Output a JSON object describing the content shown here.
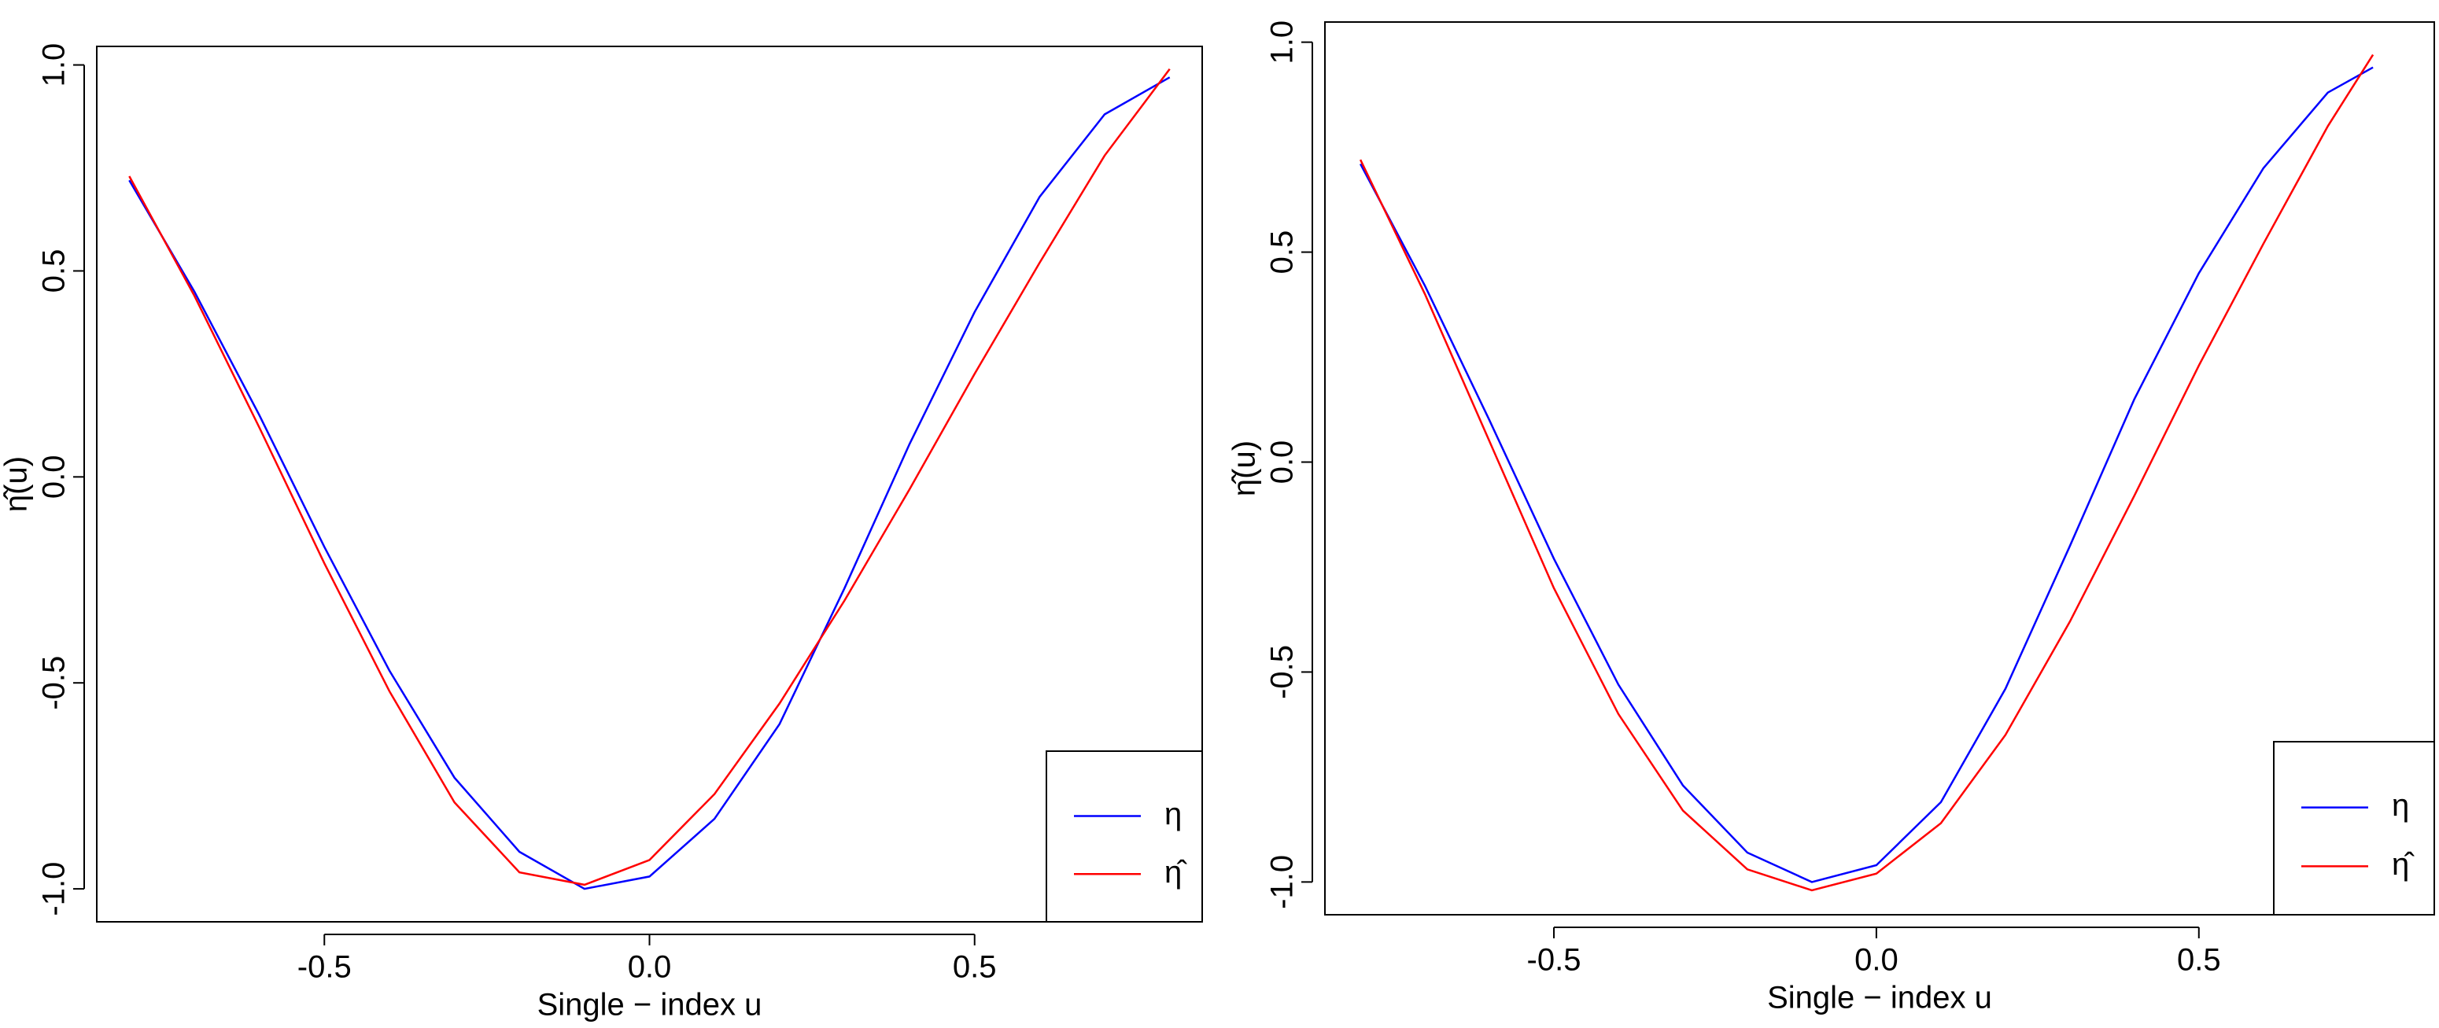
{
  "chart_data": [
    {
      "type": "line",
      "xlabel": "Single − index u",
      "ylabel": "η̂(u)",
      "x": [
        -0.8,
        -0.7,
        -0.6,
        -0.5,
        -0.4,
        -0.3,
        -0.2,
        -0.1,
        0.0,
        0.1,
        0.2,
        0.3,
        0.4,
        0.5,
        0.6,
        0.7,
        0.8
      ],
      "series": [
        {
          "name": "η",
          "color": "#0000ff",
          "values": [
            0.72,
            0.45,
            0.15,
            -0.17,
            -0.47,
            -0.73,
            -0.91,
            -1.0,
            -0.97,
            -0.83,
            -0.6,
            -0.27,
            0.08,
            0.4,
            0.68,
            0.88,
            0.97
          ]
        },
        {
          "name": "η̂",
          "color": "#ff0000",
          "values": [
            0.73,
            0.44,
            0.12,
            -0.21,
            -0.52,
            -0.79,
            -0.96,
            -0.99,
            -0.93,
            -0.77,
            -0.55,
            -0.3,
            -0.03,
            0.25,
            0.52,
            0.78,
            0.99
          ]
        }
      ],
      "xlim": [
        -0.85,
        0.85
      ],
      "ylim": [
        -1.08,
        1.045
      ],
      "xticks": [
        -0.5,
        {
          "value": 0,
          "label": "0.0"
        },
        0.5
      ],
      "yticks": [
        {
          "value": -1,
          "label": "-1.0"
        },
        -0.5,
        {
          "value": 0,
          "label": "0.0"
        },
        0.5,
        {
          "value": 1,
          "label": "1.0"
        }
      ],
      "legend": "bottom-right"
    },
    {
      "type": "line",
      "xlabel": "Single − index u",
      "ylabel": "η̂(u)",
      "x": [
        -0.8,
        -0.7,
        -0.6,
        -0.5,
        -0.4,
        -0.3,
        -0.2,
        -0.1,
        0.0,
        0.1,
        0.2,
        0.3,
        0.4,
        0.5,
        0.6,
        0.7,
        0.77
      ],
      "series": [
        {
          "name": "η",
          "color": "#0000ff",
          "values": [
            0.71,
            0.42,
            0.1,
            -0.23,
            -0.53,
            -0.77,
            -0.93,
            -1.0,
            -0.96,
            -0.81,
            -0.54,
            -0.2,
            0.15,
            0.45,
            0.7,
            0.88,
            0.94
          ]
        },
        {
          "name": "η̂",
          "color": "#ff0000",
          "values": [
            0.72,
            0.4,
            0.05,
            -0.3,
            -0.6,
            -0.83,
            -0.97,
            -1.02,
            -0.98,
            -0.86,
            -0.65,
            -0.38,
            -0.08,
            0.23,
            0.52,
            0.8,
            0.97
          ]
        }
      ],
      "xlim": [
        -0.855,
        0.865
      ],
      "ylim": [
        -1.078,
        1.048
      ],
      "xticks": [
        -0.5,
        {
          "value": 0,
          "label": "0.0"
        },
        0.5
      ],
      "yticks": [
        {
          "value": -1,
          "label": "-1.0"
        },
        -0.5,
        {
          "value": 0,
          "label": "0.0"
        },
        0.5,
        {
          "value": 1,
          "label": "1.0"
        }
      ],
      "legend": "bottom-right"
    }
  ]
}
